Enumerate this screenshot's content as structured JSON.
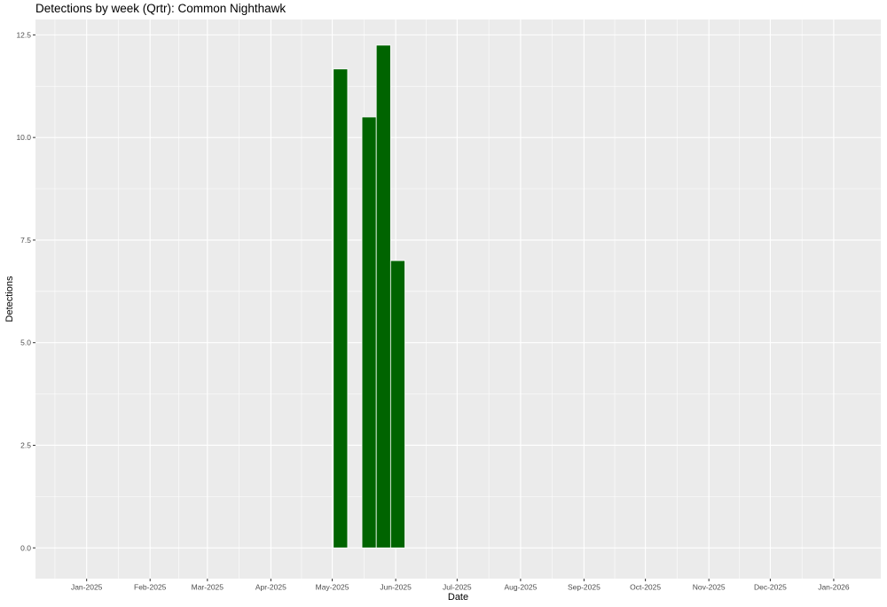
{
  "chart_data": {
    "type": "bar",
    "title": "Detections by week (Qrtr): Common Nighthawk",
    "xlabel": "Date",
    "ylabel": "Detections",
    "x_tick_labels": [
      "Jan-2025",
      "Feb-2025",
      "Mar-2025",
      "Apr-2025",
      "May-2025",
      "Jun-2025",
      "Jul-2025",
      "Aug-2025",
      "Sep-2025",
      "Oct-2025",
      "Nov-2025",
      "Dec-2025",
      "Jan-2026"
    ],
    "y_tick_labels": [
      "0.0",
      "2.5",
      "5.0",
      "7.5",
      "10.0",
      "12.5"
    ],
    "ylim": [
      -0.75,
      12.875
    ],
    "xlim": [
      "2024-12-07",
      "2026-01-24"
    ],
    "grid": true,
    "bar_color": "#006400",
    "panel_background": "#EBEBEB",
    "bars": [
      {
        "week_start": "2025-05-05",
        "value": 11.67
      },
      {
        "week_start": "2025-05-19",
        "value": 10.5
      },
      {
        "week_start": "2025-05-26",
        "value": 12.25
      },
      {
        "week_start": "2025-06-02",
        "value": 7.0
      }
    ]
  }
}
